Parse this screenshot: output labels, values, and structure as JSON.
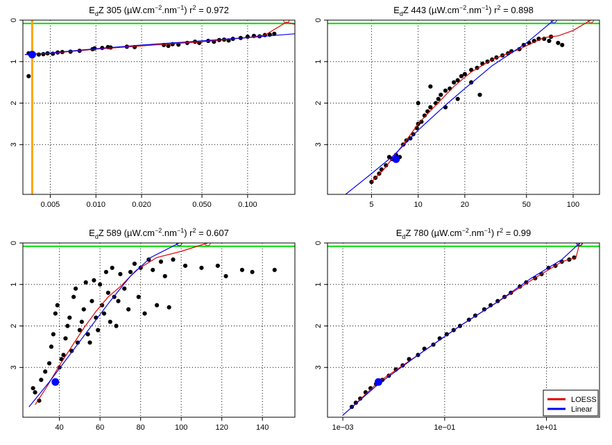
{
  "chart_data": [
    {
      "type": "scatter",
      "title": {
        "prefix": "E",
        "sub": "d",
        "rest": "Z 305 (µW.cm",
        "sup1": "−2",
        "mid": ".nm",
        "sup2": "−1",
        "end": ") r",
        "sup3": "2",
        "tail": " = 0.972"
      },
      "x_scale": "log",
      "xlim": [
        0.0033,
        0.205
      ],
      "ylim": [
        0,
        4.2
      ],
      "x_ticks": [
        0.005,
        0.01,
        0.02,
        0.05,
        0.1
      ],
      "x_tick_labels": [
        "0.005",
        "0.010",
        "0.020",
        "0.050",
        "0.100"
      ],
      "y_ticks": [
        0,
        1,
        2,
        3
      ],
      "y_tick_labels": [
        "0",
        "1",
        "2",
        "3"
      ],
      "grid": true,
      "surface_line_depth": 0.08,
      "vline_x": 0.0038,
      "points": [
        [
          0.0036,
          1.35
        ],
        [
          0.0036,
          0.8
        ],
        [
          0.0039,
          0.82
        ],
        [
          0.0042,
          0.83
        ],
        [
          0.0045,
          0.82
        ],
        [
          0.0048,
          0.8
        ],
        [
          0.0052,
          0.81
        ],
        [
          0.0056,
          0.78
        ],
        [
          0.006,
          0.77
        ],
        [
          0.0068,
          0.76
        ],
        [
          0.0078,
          0.74
        ],
        [
          0.0095,
          0.7
        ],
        [
          0.0098,
          0.68
        ],
        [
          0.011,
          0.67
        ],
        [
          0.012,
          0.65
        ],
        [
          0.0125,
          0.66
        ],
        [
          0.016,
          0.64
        ],
        [
          0.018,
          0.65
        ],
        [
          0.028,
          0.6
        ],
        [
          0.03,
          0.62
        ],
        [
          0.032,
          0.58
        ],
        [
          0.035,
          0.59
        ],
        [
          0.04,
          0.55
        ],
        [
          0.045,
          0.52
        ],
        [
          0.048,
          0.55
        ],
        [
          0.055,
          0.5
        ],
        [
          0.06,
          0.52
        ],
        [
          0.065,
          0.48
        ],
        [
          0.07,
          0.47
        ],
        [
          0.075,
          0.49
        ],
        [
          0.08,
          0.45
        ],
        [
          0.09,
          0.43
        ],
        [
          0.1,
          0.4
        ],
        [
          0.11,
          0.38
        ],
        [
          0.12,
          0.39
        ],
        [
          0.13,
          0.36
        ],
        [
          0.14,
          0.35
        ],
        [
          0.15,
          0.33
        ]
      ],
      "loess": [
        [
          0.0034,
          0.83
        ],
        [
          0.005,
          0.8
        ],
        [
          0.01,
          0.7
        ],
        [
          0.02,
          0.62
        ],
        [
          0.05,
          0.52
        ],
        [
          0.1,
          0.42
        ],
        [
          0.13,
          0.36
        ],
        [
          0.18,
          0.05
        ],
        [
          0.205,
          0.1
        ]
      ],
      "linear": [
        [
          0.0034,
          0.83
        ],
        [
          0.005,
          0.79
        ],
        [
          0.01,
          0.69
        ],
        [
          0.02,
          0.6
        ],
        [
          0.05,
          0.5
        ],
        [
          0.1,
          0.42
        ],
        [
          0.205,
          0.33
        ]
      ],
      "loess_surface": [
        0.18,
        0.0
      ],
      "linear_surface": null,
      "highlight": [
        0.0038,
        0.83
      ]
    },
    {
      "type": "scatter",
      "title": {
        "prefix": "E",
        "sub": "d",
        "rest": "Z 443 (µW.cm",
        "sup1": "−2",
        "mid": ".nm",
        "sup2": "−1",
        "end": ") r",
        "sup3": "2",
        "tail": " = 0.898"
      },
      "x_scale": "log",
      "xlim": [
        2.6,
        148
      ],
      "ylim": [
        0,
        4.2
      ],
      "x_ticks": [
        5,
        10,
        20,
        50,
        100
      ],
      "x_tick_labels": [
        "5",
        "10",
        "20",
        "50",
        "100"
      ],
      "y_ticks": [
        0,
        1,
        2,
        3
      ],
      "y_tick_labels": [
        "0",
        "1",
        "2",
        "3"
      ],
      "grid": true,
      "surface_line_depth": 0.08,
      "points": [
        [
          5,
          3.9
        ],
        [
          5.3,
          3.8
        ],
        [
          5.6,
          3.7
        ],
        [
          5.8,
          3.6
        ],
        [
          6.2,
          3.5
        ],
        [
          6.5,
          3.3
        ],
        [
          6.8,
          3.35
        ],
        [
          7.2,
          3.25
        ],
        [
          7.6,
          3.3
        ],
        [
          8,
          3.0
        ],
        [
          8.4,
          2.9
        ],
        [
          8.9,
          2.85
        ],
        [
          9.3,
          2.75
        ],
        [
          9.8,
          2.6
        ],
        [
          10,
          2.5
        ],
        [
          10.5,
          2.45
        ],
        [
          11,
          2.3
        ],
        [
          11.5,
          2.2
        ],
        [
          12,
          2.1
        ],
        [
          13,
          2.0
        ],
        [
          13.5,
          1.9
        ],
        [
          14,
          1.8
        ],
        [
          15,
          1.7
        ],
        [
          16,
          1.65
        ],
        [
          17,
          1.5
        ],
        [
          18,
          1.45
        ],
        [
          19,
          1.35
        ],
        [
          20,
          1.3
        ],
        [
          22,
          1.2
        ],
        [
          24,
          1.15
        ],
        [
          26,
          1.05
        ],
        [
          28,
          1.0
        ],
        [
          30,
          0.95
        ],
        [
          32,
          0.9
        ],
        [
          35,
          0.85
        ],
        [
          38,
          0.8
        ],
        [
          40,
          0.75
        ],
        [
          45,
          0.7
        ],
        [
          48,
          0.6
        ],
        [
          52,
          0.55
        ],
        [
          56,
          0.5
        ],
        [
          60,
          0.45
        ],
        [
          65,
          0.45
        ],
        [
          70,
          0.5
        ],
        [
          80,
          0.55
        ],
        [
          85,
          0.6
        ],
        [
          72,
          0.4
        ],
        [
          10,
          2.0
        ],
        [
          12,
          1.6
        ],
        [
          15,
          2.1
        ],
        [
          18,
          1.9
        ],
        [
          22,
          1.5
        ],
        [
          25,
          1.8
        ]
      ],
      "loess": [
        [
          5.0,
          3.9
        ],
        [
          6,
          3.6
        ],
        [
          8,
          3.0
        ],
        [
          10,
          2.5
        ],
        [
          13,
          2.05
        ],
        [
          17,
          1.6
        ],
        [
          22,
          1.25
        ],
        [
          30,
          0.95
        ],
        [
          45,
          0.7
        ],
        [
          65,
          0.42
        ],
        [
          80,
          0.38
        ],
        [
          100,
          0.25
        ],
        [
          130,
          0.0
        ]
      ],
      "linear": [
        [
          3.4,
          4.2
        ],
        [
          5,
          3.7
        ],
        [
          7,
          3.25
        ],
        [
          10,
          2.65
        ],
        [
          15,
          2.05
        ],
        [
          20,
          1.65
        ],
        [
          30,
          1.1
        ],
        [
          50,
          0.55
        ],
        [
          75,
          0.0
        ]
      ],
      "loess_surface": [
        130,
        0.0
      ],
      "linear_surface": [
        75,
        0.0
      ],
      "highlight": [
        7.2,
        3.35
      ]
    },
    {
      "type": "scatter",
      "title": {
        "prefix": "E",
        "sub": "d",
        "rest": "Z 589 (µW.cm",
        "sup1": "−2",
        "mid": ".nm",
        "sup2": "−1",
        "end": ") r",
        "sup3": "2",
        "tail": " = 0.607"
      },
      "x_scale": "linear",
      "xlim": [
        22,
        156
      ],
      "ylim": [
        0,
        4.2
      ],
      "x_ticks": [
        40,
        60,
        80,
        100,
        120,
        140
      ],
      "x_tick_labels": [
        "40",
        "60",
        "80",
        "100",
        "120",
        "140"
      ],
      "y_ticks": [
        0,
        1,
        2,
        3
      ],
      "y_tick_labels": [
        "0",
        "1",
        "2",
        "3"
      ],
      "grid": true,
      "surface_line_depth": 0.08,
      "points": [
        [
          27,
          3.5
        ],
        [
          28,
          3.6
        ],
        [
          30,
          3.8
        ],
        [
          31,
          3.3
        ],
        [
          33,
          3.1
        ],
        [
          35,
          2.9
        ],
        [
          36,
          2.5
        ],
        [
          37,
          2.2
        ],
        [
          38,
          1.7
        ],
        [
          39,
          1.5
        ],
        [
          40,
          3.0
        ],
        [
          41,
          2.8
        ],
        [
          42,
          2.7
        ],
        [
          43,
          2.3
        ],
        [
          44,
          2.0
        ],
        [
          45,
          1.8
        ],
        [
          46,
          2.6
        ],
        [
          47,
          1.3
        ],
        [
          48,
          1.1
        ],
        [
          49,
          2.4
        ],
        [
          50,
          2.1
        ],
        [
          51,
          1.9
        ],
        [
          52,
          1.6
        ],
        [
          53,
          0.95
        ],
        [
          54,
          2.2
        ],
        [
          55,
          2.4
        ],
        [
          56,
          1.4
        ],
        [
          57,
          0.9
        ],
        [
          58,
          1.8
        ],
        [
          59,
          2.1
        ],
        [
          60,
          1.0
        ],
        [
          61,
          1.5
        ],
        [
          62,
          1.7
        ],
        [
          63,
          0.7
        ],
        [
          64,
          1.2
        ],
        [
          65,
          1.9
        ],
        [
          66,
          0.6
        ],
        [
          67,
          1.3
        ],
        [
          68,
          2.0
        ],
        [
          69,
          1.4
        ],
        [
          70,
          0.75
        ],
        [
          72,
          1.1
        ],
        [
          74,
          1.6
        ],
        [
          75,
          0.7
        ],
        [
          77,
          0.5
        ],
        [
          79,
          1.3
        ],
        [
          80,
          0.6
        ],
        [
          82,
          1.7
        ],
        [
          84,
          0.4
        ],
        [
          86,
          0.65
        ],
        [
          88,
          1.5
        ],
        [
          90,
          0.45
        ],
        [
          92,
          0.8
        ],
        [
          94,
          1.55
        ],
        [
          96,
          0.4
        ],
        [
          102,
          0.55
        ],
        [
          110,
          0.6
        ],
        [
          118,
          0.55
        ],
        [
          122,
          0.8
        ],
        [
          130,
          0.65
        ],
        [
          135,
          0.7
        ],
        [
          146,
          0.65
        ]
      ],
      "loess": [
        [
          28,
          3.9
        ],
        [
          34,
          3.45
        ],
        [
          40,
          2.95
        ],
        [
          46,
          2.5
        ],
        [
          52,
          2.05
        ],
        [
          58,
          1.65
        ],
        [
          64,
          1.3
        ],
        [
          70,
          1.05
        ],
        [
          78,
          0.65
        ],
        [
          88,
          0.35
        ],
        [
          100,
          0.2
        ],
        [
          113,
          0.0
        ]
      ],
      "linear": [
        [
          25,
          3.95
        ],
        [
          35,
          3.35
        ],
        [
          45,
          2.7
        ],
        [
          55,
          2.05
        ],
        [
          65,
          1.4
        ],
        [
          75,
          0.8
        ],
        [
          85,
          0.35
        ],
        [
          99,
          0.0
        ]
      ],
      "loess_surface": [
        113,
        0.0
      ],
      "linear_surface": [
        99,
        0.0
      ],
      "highlight": [
        38,
        3.35
      ]
    },
    {
      "type": "scatter",
      "title": {
        "prefix": "E",
        "sub": "d",
        "rest": "Z 780 (µW.cm",
        "sup1": "−2",
        "mid": ".nm",
        "sup2": "−1",
        "end": ") r",
        "sup3": "2",
        "tail": " = 0.99"
      },
      "x_scale": "log",
      "xlim": [
        0.0005,
        110
      ],
      "ylim": [
        0,
        4.2
      ],
      "x_ticks": [
        0.001,
        0.1,
        10
      ],
      "x_tick_labels": [
        "1e−03",
        "1e−01",
        "1e+01"
      ],
      "y_ticks": [
        0,
        1,
        2,
        3
      ],
      "y_tick_labels": [
        "0",
        "1",
        "2",
        "3"
      ],
      "grid": true,
      "surface_line_depth": 0.08,
      "points": [
        [
          0.0015,
          3.95
        ],
        [
          0.0018,
          3.85
        ],
        [
          0.0022,
          3.75
        ],
        [
          0.0028,
          3.6
        ],
        [
          0.0035,
          3.5
        ],
        [
          0.0045,
          3.4
        ],
        [
          0.006,
          3.3
        ],
        [
          0.008,
          3.2
        ],
        [
          0.011,
          3.05
        ],
        [
          0.015,
          2.95
        ],
        [
          0.02,
          2.8
        ],
        [
          0.03,
          2.7
        ],
        [
          0.04,
          2.55
        ],
        [
          0.06,
          2.45
        ],
        [
          0.08,
          2.3
        ],
        [
          0.11,
          2.2
        ],
        [
          0.15,
          2.1
        ],
        [
          0.2,
          2.0
        ],
        [
          0.3,
          1.85
        ],
        [
          0.4,
          1.75
        ],
        [
          0.6,
          1.6
        ],
        [
          0.8,
          1.5
        ],
        [
          1.1,
          1.4
        ],
        [
          1.5,
          1.3
        ],
        [
          2,
          1.2
        ],
        [
          3,
          1.05
        ],
        [
          4,
          0.95
        ],
        [
          6,
          0.85
        ],
        [
          8,
          0.75
        ],
        [
          11,
          0.6
        ],
        [
          15,
          0.55
        ],
        [
          20,
          0.45
        ],
        [
          28,
          0.4
        ],
        [
          35,
          0.35
        ]
      ],
      "loess": [
        [
          0.0014,
          4.0
        ],
        [
          0.005,
          3.35
        ],
        [
          0.03,
          2.7
        ],
        [
          0.2,
          2.0
        ],
        [
          1,
          1.45
        ],
        [
          5,
          0.9
        ],
        [
          20,
          0.45
        ],
        [
          38,
          0.35
        ],
        [
          45,
          0.0
        ]
      ],
      "linear": [
        [
          0.001,
          4.15
        ],
        [
          0.005,
          3.4
        ],
        [
          0.03,
          2.7
        ],
        [
          0.2,
          2.0
        ],
        [
          1,
          1.45
        ],
        [
          5,
          0.85
        ],
        [
          20,
          0.4
        ],
        [
          45,
          0.0
        ]
      ],
      "loess_surface": [
        45,
        0.0
      ],
      "linear_surface": [
        44,
        0.0
      ],
      "highlight": [
        0.005,
        3.35
      ]
    }
  ],
  "legend": {
    "items": [
      {
        "label": "LOESS",
        "color": "#e00000"
      },
      {
        "label": "Linear",
        "color": "#0000ee"
      }
    ]
  },
  "colors": {
    "points": "#000000",
    "loess": "#e00000",
    "linear": "#0000ee",
    "surface": "#00dd00",
    "vline": "#ffa500",
    "highlight": "#0000ff"
  }
}
